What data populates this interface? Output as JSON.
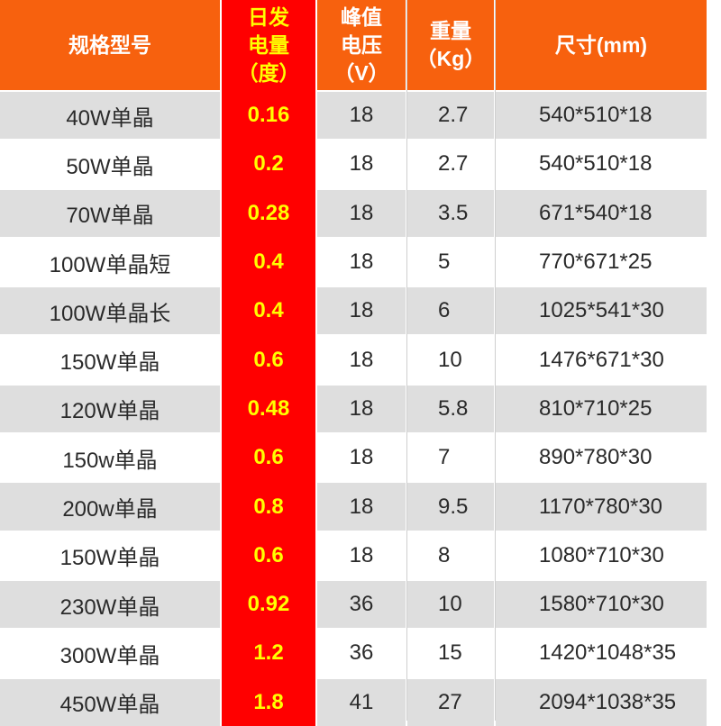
{
  "colors": {
    "header_bg": "#f7610e",
    "highlight_column_bg": "#ff0000",
    "highlight_text": "#ffff00",
    "row_gray": "#dedede",
    "row_white": "#ffffff"
  },
  "headers": {
    "model": "规格型号",
    "daily_output": [
      "日发",
      "电量",
      "（度）"
    ],
    "peak_voltage": [
      "峰值",
      "电压",
      "（V）"
    ],
    "weight": [
      "重量",
      "（Kg）"
    ],
    "size": "尺寸(mm)"
  },
  "rows": [
    {
      "model": "40W单晶",
      "daily_output": "0.16",
      "peak_voltage": "18",
      "weight": "2.7",
      "size": "540*510*18"
    },
    {
      "model": "50W单晶",
      "daily_output": "0.2",
      "peak_voltage": "18",
      "weight": "2.7",
      "size": "540*510*18"
    },
    {
      "model": "70W单晶",
      "daily_output": "0.28",
      "peak_voltage": "18",
      "weight": "3.5",
      "size": "671*540*18"
    },
    {
      "model": "100W单晶短",
      "daily_output": "0.4",
      "peak_voltage": "18",
      "weight": "5",
      "size": "770*671*25"
    },
    {
      "model": "100W单晶长",
      "daily_output": "0.4",
      "peak_voltage": "18",
      "weight": "6",
      "size": "1025*541*30"
    },
    {
      "model": "150W单晶",
      "daily_output": "0.6",
      "peak_voltage": "18",
      "weight": "10",
      "size": "1476*671*30"
    },
    {
      "model": "120W单晶",
      "daily_output": "0.48",
      "peak_voltage": "18",
      "weight": "5.8",
      "size": "810*710*25"
    },
    {
      "model": "150w单晶",
      "daily_output": "0.6",
      "peak_voltage": "18",
      "weight": "7",
      "size": "890*780*30"
    },
    {
      "model": "200w单晶",
      "daily_output": "0.8",
      "peak_voltage": "18",
      "weight": "9.5",
      "size": "1170*780*30"
    },
    {
      "model": "150W单晶",
      "daily_output": "0.6",
      "peak_voltage": "18",
      "weight": "8",
      "size": "1080*710*30"
    },
    {
      "model": "230W单晶",
      "daily_output": "0.92",
      "peak_voltage": "36",
      "weight": "10",
      "size": "1580*710*30"
    },
    {
      "model": "300W单晶",
      "daily_output": "1.2",
      "peak_voltage": "36",
      "weight": "15",
      "size": "1420*1048*35"
    },
    {
      "model": "450W单晶",
      "daily_output": "1.8",
      "peak_voltage": "41",
      "weight": "27",
      "size": "2094*1038*35"
    }
  ]
}
